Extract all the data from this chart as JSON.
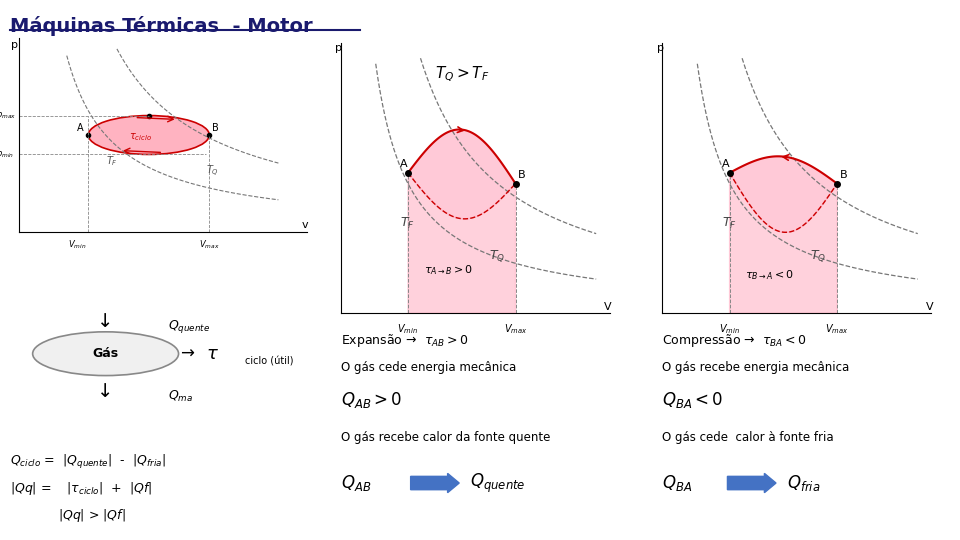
{
  "title": "Máquinas Térmicas  - Motor",
  "title_color": "#1a1a6e",
  "bg_color": "#ffffff",
  "divider_color": "#cccccc",
  "panel1": {
    "pv_diagram": {
      "ellipse_fill": "#ffb3c1",
      "ellipse_edge": "#cc0000",
      "dashed_color": "#555555",
      "arrow_color": "#cc0000"
    },
    "fonte_quente_color": "#e87722",
    "fonte_fria_color": "#00aadd"
  },
  "panel2": {
    "title_math": "$T_Q > T_F$",
    "plot_fill": "#ffb3c6",
    "curve_color": "#cc0000",
    "dashed_color": "#555555",
    "expansion_text": "Expansão →",
    "text1": "O gás cede energia mecânica",
    "text2": "O gás recebe calor da fonte quente",
    "arrow_blue": "#4472c4"
  },
  "panel3": {
    "plot_fill": "#ffb3c6",
    "curve_color": "#cc0000",
    "dashed_color": "#555555",
    "compression_text": "Compressão →",
    "text1": "O gás recebe energia mecânica",
    "text2": "O gás cede  calor à fonte fria",
    "arrow_blue": "#4472c4"
  }
}
